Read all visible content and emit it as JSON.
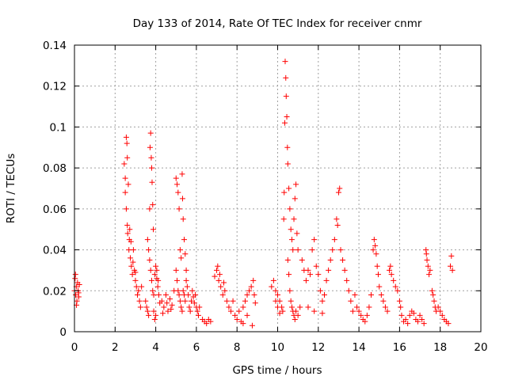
{
  "chart_data": {
    "type": "scatter",
    "title": "Day 133 of 2014, Rate Of TEC Index for receiver cnmr",
    "xlabel": "GPS time / hours",
    "ylabel": "ROTI / TECUs",
    "xlim": [
      0,
      20
    ],
    "ylim": [
      0,
      0.14
    ],
    "x_ticks": [
      0,
      2,
      4,
      6,
      8,
      10,
      12,
      14,
      16,
      18,
      20
    ],
    "x_tick_labels": [
      "0",
      "2",
      "4",
      "6",
      "8",
      "10",
      "12",
      "14",
      "16",
      "18",
      "20"
    ],
    "y_ticks": [
      0,
      0.02,
      0.04,
      0.06,
      0.08,
      0.1,
      0.12,
      0.14
    ],
    "y_tick_labels": [
      "0",
      "0.02",
      "0.04",
      "0.06",
      "0.08",
      "0.1",
      "0.12",
      "0.14"
    ],
    "grid": true,
    "marker": "plus",
    "color": "#ff0000",
    "series": [
      {
        "name": "ROTI",
        "points": [
          [
            0.0,
            0.02
          ],
          [
            0.03,
            0.026
          ],
          [
            0.06,
            0.018
          ],
          [
            0.09,
            0.022
          ],
          [
            0.12,
            0.015
          ],
          [
            0.15,
            0.024
          ],
          [
            0.18,
            0.02
          ],
          [
            0.21,
            0.017
          ],
          [
            0.24,
            0.023
          ],
          [
            0.05,
            0.028
          ],
          [
            0.1,
            0.013
          ],
          [
            0.2,
            0.019
          ],
          [
            2.45,
            0.082
          ],
          [
            2.5,
            0.075
          ],
          [
            2.55,
            0.095
          ],
          [
            2.58,
            0.092
          ],
          [
            2.6,
            0.085
          ],
          [
            2.65,
            0.072
          ],
          [
            2.5,
            0.068
          ],
          [
            2.55,
            0.06
          ],
          [
            2.6,
            0.052
          ],
          [
            2.62,
            0.048
          ],
          [
            2.68,
            0.04
          ],
          [
            2.7,
            0.045
          ],
          [
            2.75,
            0.036
          ],
          [
            2.8,
            0.032
          ],
          [
            2.85,
            0.028
          ],
          [
            2.9,
            0.04
          ],
          [
            2.95,
            0.03
          ],
          [
            3.0,
            0.025
          ],
          [
            3.05,
            0.022
          ],
          [
            3.1,
            0.018
          ],
          [
            3.15,
            0.02
          ],
          [
            3.2,
            0.015
          ],
          [
            3.25,
            0.012
          ],
          [
            3.3,
            0.022
          ],
          [
            2.72,
            0.05
          ],
          [
            2.78,
            0.044
          ],
          [
            2.88,
            0.034
          ],
          [
            3.0,
            0.029
          ],
          [
            3.5,
            0.015
          ],
          [
            3.55,
            0.012
          ],
          [
            3.6,
            0.01
          ],
          [
            3.65,
            0.008
          ],
          [
            3.7,
            0.06
          ],
          [
            3.72,
            0.09
          ],
          [
            3.75,
            0.097
          ],
          [
            3.78,
            0.085
          ],
          [
            3.8,
            0.08
          ],
          [
            3.82,
            0.073
          ],
          [
            3.85,
            0.062
          ],
          [
            3.6,
            0.045
          ],
          [
            3.65,
            0.04
          ],
          [
            3.7,
            0.035
          ],
          [
            3.75,
            0.03
          ],
          [
            3.8,
            0.025
          ],
          [
            3.85,
            0.02
          ],
          [
            3.9,
            0.018
          ],
          [
            3.95,
            0.028
          ],
          [
            4.0,
            0.032
          ],
          [
            4.05,
            0.026
          ],
          [
            4.1,
            0.022
          ],
          [
            4.15,
            0.018
          ],
          [
            4.2,
            0.014
          ],
          [
            3.9,
            0.01
          ],
          [
            3.95,
            0.006
          ],
          [
            4.0,
            0.008
          ],
          [
            3.88,
            0.05
          ],
          [
            4.05,
            0.03
          ],
          [
            4.12,
            0.025
          ],
          [
            4.3,
            0.015
          ],
          [
            4.4,
            0.012
          ],
          [
            4.5,
            0.018
          ],
          [
            4.6,
            0.01
          ],
          [
            4.7,
            0.016
          ],
          [
            4.8,
            0.013
          ],
          [
            4.9,
            0.02
          ],
          [
            4.35,
            0.009
          ],
          [
            4.55,
            0.014
          ],
          [
            4.75,
            0.011
          ],
          [
            5.0,
            0.075
          ],
          [
            5.05,
            0.072
          ],
          [
            5.1,
            0.068
          ],
          [
            5.15,
            0.06
          ],
          [
            5.2,
            0.04
          ],
          [
            5.25,
            0.036
          ],
          [
            5.3,
            0.077
          ],
          [
            5.32,
            0.065
          ],
          [
            5.35,
            0.055
          ],
          [
            5.4,
            0.045
          ],
          [
            5.45,
            0.038
          ],
          [
            5.5,
            0.03
          ],
          [
            5.0,
            0.03
          ],
          [
            5.05,
            0.025
          ],
          [
            5.1,
            0.02
          ],
          [
            5.15,
            0.018
          ],
          [
            5.2,
            0.015
          ],
          [
            5.25,
            0.012
          ],
          [
            5.3,
            0.01
          ],
          [
            5.35,
            0.02
          ],
          [
            5.4,
            0.018
          ],
          [
            5.45,
            0.015
          ],
          [
            5.5,
            0.025
          ],
          [
            5.55,
            0.022
          ],
          [
            5.6,
            0.018
          ],
          [
            5.65,
            0.012
          ],
          [
            5.7,
            0.01
          ],
          [
            5.75,
            0.015
          ],
          [
            5.8,
            0.02
          ],
          [
            5.85,
            0.017
          ],
          [
            5.9,
            0.014
          ],
          [
            5.95,
            0.018
          ],
          [
            6.0,
            0.012
          ],
          [
            6.05,
            0.01
          ],
          [
            6.1,
            0.008
          ],
          [
            6.15,
            0.012
          ],
          [
            6.3,
            0.006
          ],
          [
            6.4,
            0.005
          ],
          [
            6.5,
            0.004
          ],
          [
            6.6,
            0.006
          ],
          [
            6.7,
            0.005
          ],
          [
            6.9,
            0.027
          ],
          [
            7.0,
            0.03
          ],
          [
            7.05,
            0.032
          ],
          [
            7.1,
            0.025
          ],
          [
            7.15,
            0.028
          ],
          [
            7.2,
            0.022
          ],
          [
            7.3,
            0.018
          ],
          [
            7.35,
            0.024
          ],
          [
            7.4,
            0.02
          ],
          [
            7.5,
            0.015
          ],
          [
            7.6,
            0.012
          ],
          [
            7.7,
            0.01
          ],
          [
            7.8,
            0.015
          ],
          [
            7.9,
            0.008
          ],
          [
            8.0,
            0.006
          ],
          [
            8.1,
            0.01
          ],
          [
            8.2,
            0.005
          ],
          [
            8.3,
            0.012
          ],
          [
            8.4,
            0.015
          ],
          [
            8.5,
            0.018
          ],
          [
            8.6,
            0.02
          ],
          [
            8.7,
            0.022
          ],
          [
            8.8,
            0.025
          ],
          [
            8.85,
            0.018
          ],
          [
            8.9,
            0.014
          ],
          [
            8.3,
            0.004
          ],
          [
            8.5,
            0.008
          ],
          [
            8.75,
            0.003
          ],
          [
            9.7,
            0.022
          ],
          [
            9.8,
            0.025
          ],
          [
            9.9,
            0.02
          ],
          [
            10.0,
            0.018
          ],
          [
            10.1,
            0.015
          ],
          [
            10.2,
            0.012
          ],
          [
            10.25,
            0.01
          ],
          [
            10.3,
            0.055
          ],
          [
            10.32,
            0.068
          ],
          [
            10.35,
            0.102
          ],
          [
            10.37,
            0.132
          ],
          [
            10.4,
            0.124
          ],
          [
            10.42,
            0.115
          ],
          [
            10.45,
            0.105
          ],
          [
            10.48,
            0.09
          ],
          [
            10.5,
            0.082
          ],
          [
            10.55,
            0.07
          ],
          [
            10.6,
            0.06
          ],
          [
            10.65,
            0.05
          ],
          [
            10.7,
            0.045
          ],
          [
            10.75,
            0.04
          ],
          [
            10.8,
            0.055
          ],
          [
            10.85,
            0.065
          ],
          [
            10.9,
            0.072
          ],
          [
            10.95,
            0.048
          ],
          [
            11.0,
            0.04
          ],
          [
            10.5,
            0.035
          ],
          [
            10.55,
            0.028
          ],
          [
            10.6,
            0.02
          ],
          [
            10.65,
            0.015
          ],
          [
            10.7,
            0.012
          ],
          [
            10.75,
            0.01
          ],
          [
            10.8,
            0.008
          ],
          [
            10.85,
            0.006
          ],
          [
            10.9,
            0.01
          ],
          [
            11.0,
            0.008
          ],
          [
            11.1,
            0.012
          ],
          [
            9.9,
            0.015
          ],
          [
            10.0,
            0.012
          ],
          [
            10.1,
            0.009
          ],
          [
            11.2,
            0.035
          ],
          [
            11.3,
            0.03
          ],
          [
            11.4,
            0.025
          ],
          [
            11.5,
            0.03
          ],
          [
            11.6,
            0.028
          ],
          [
            11.7,
            0.04
          ],
          [
            11.8,
            0.045
          ],
          [
            11.9,
            0.032
          ],
          [
            12.0,
            0.028
          ],
          [
            12.1,
            0.02
          ],
          [
            12.2,
            0.015
          ],
          [
            12.3,
            0.018
          ],
          [
            12.4,
            0.025
          ],
          [
            12.5,
            0.03
          ],
          [
            12.6,
            0.035
          ],
          [
            12.7,
            0.04
          ],
          [
            12.8,
            0.045
          ],
          [
            12.9,
            0.055
          ],
          [
            12.95,
            0.052
          ],
          [
            13.0,
            0.068
          ],
          [
            13.05,
            0.07
          ],
          [
            13.1,
            0.04
          ],
          [
            13.2,
            0.035
          ],
          [
            13.3,
            0.03
          ],
          [
            13.4,
            0.025
          ],
          [
            13.5,
            0.02
          ],
          [
            13.6,
            0.015
          ],
          [
            13.7,
            0.01
          ],
          [
            13.8,
            0.018
          ],
          [
            13.9,
            0.012
          ],
          [
            11.5,
            0.012
          ],
          [
            11.8,
            0.01
          ],
          [
            12.2,
            0.009
          ],
          [
            14.0,
            0.01
          ],
          [
            14.1,
            0.008
          ],
          [
            14.2,
            0.006
          ],
          [
            14.3,
            0.005
          ],
          [
            14.4,
            0.008
          ],
          [
            14.5,
            0.012
          ],
          [
            14.6,
            0.018
          ],
          [
            14.7,
            0.04
          ],
          [
            14.75,
            0.045
          ],
          [
            14.8,
            0.042
          ],
          [
            14.85,
            0.038
          ],
          [
            14.9,
            0.032
          ],
          [
            14.95,
            0.028
          ],
          [
            15.0,
            0.022
          ],
          [
            15.1,
            0.018
          ],
          [
            15.2,
            0.015
          ],
          [
            15.3,
            0.012
          ],
          [
            15.4,
            0.01
          ],
          [
            15.5,
            0.03
          ],
          [
            15.55,
            0.032
          ],
          [
            15.6,
            0.028
          ],
          [
            15.7,
            0.025
          ],
          [
            15.8,
            0.022
          ],
          [
            15.9,
            0.02
          ],
          [
            16.0,
            0.015
          ],
          [
            16.05,
            0.012
          ],
          [
            16.1,
            0.008
          ],
          [
            16.2,
            0.005
          ],
          [
            16.3,
            0.006
          ],
          [
            16.4,
            0.004
          ],
          [
            16.5,
            0.008
          ],
          [
            16.6,
            0.01
          ],
          [
            16.7,
            0.009
          ],
          [
            16.8,
            0.006
          ],
          [
            16.9,
            0.005
          ],
          [
            17.0,
            0.008
          ],
          [
            17.1,
            0.006
          ],
          [
            17.2,
            0.004
          ],
          [
            17.3,
            0.04
          ],
          [
            17.32,
            0.038
          ],
          [
            17.35,
            0.035
          ],
          [
            17.4,
            0.032
          ],
          [
            17.45,
            0.028
          ],
          [
            17.5,
            0.03
          ],
          [
            17.6,
            0.02
          ],
          [
            17.65,
            0.018
          ],
          [
            17.7,
            0.015
          ],
          [
            17.75,
            0.012
          ],
          [
            17.8,
            0.01
          ],
          [
            17.9,
            0.012
          ],
          [
            18.0,
            0.01
          ],
          [
            18.1,
            0.008
          ],
          [
            18.2,
            0.006
          ],
          [
            18.3,
            0.005
          ],
          [
            18.4,
            0.004
          ],
          [
            18.5,
            0.032
          ],
          [
            18.55,
            0.037
          ],
          [
            18.6,
            0.03
          ]
        ]
      }
    ]
  }
}
